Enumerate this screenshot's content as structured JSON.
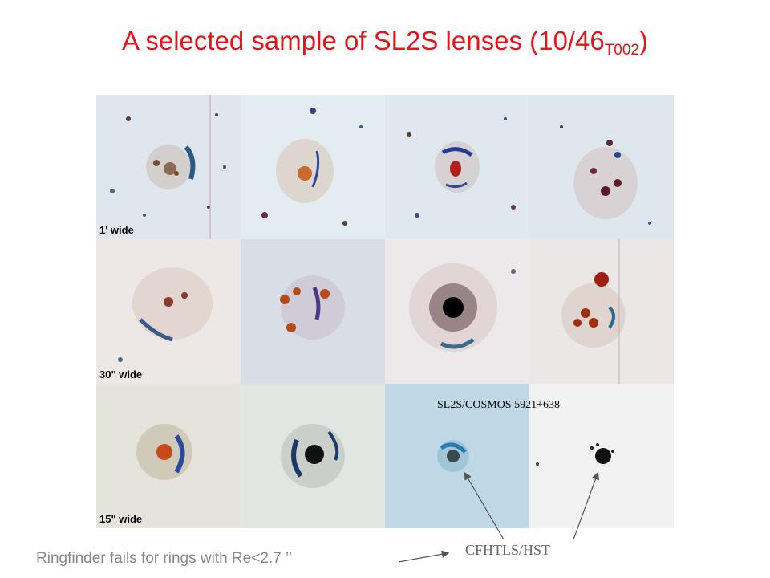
{
  "slide": {
    "title_main": "A selected sample of SL2S lenses (10/46",
    "title_sub": "T002",
    "title_close": ")",
    "title_color": "#e8141b",
    "scales": [
      "1' wide",
      "30\" wide",
      "15\" wide"
    ],
    "inset_label": "SL2S/COSMOS 5921+638",
    "caption": "Ringfinder fails for rings with Re<2.7 ’’",
    "instrument_label": "CFHTLS/HST"
  }
}
